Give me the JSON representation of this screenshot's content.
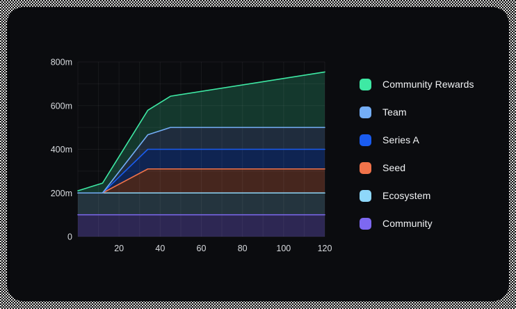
{
  "card": {
    "background": "#0b0c0f"
  },
  "legend": {
    "items": [
      {
        "label": "Community Rewards",
        "color": "#3ee9a4"
      },
      {
        "label": "Team",
        "color": "#74aef7"
      },
      {
        "label": "Series A",
        "color": "#1a5cf0"
      },
      {
        "label": "Seed",
        "color": "#f1734a"
      },
      {
        "label": "Ecosystem",
        "color": "#8ed7fa"
      },
      {
        "label": "Community",
        "color": "#7d68f1"
      }
    ]
  },
  "chart_data": {
    "type": "area",
    "stacked": true,
    "title": "",
    "xlabel": "",
    "ylabel": "",
    "xlim": [
      0,
      120
    ],
    "ylim": [
      0,
      800
    ],
    "grid": true,
    "x_grid_step": 10,
    "y_grid_step": 100,
    "grid_color": "rgba(255,255,255,0.055)",
    "axis_label_color": "#d8dbdf",
    "legend_position": "right",
    "xticks": {
      "values": [
        20,
        40,
        60,
        80,
        100,
        120
      ],
      "labels": [
        "20",
        "40",
        "60",
        "80",
        "100",
        "120"
      ]
    },
    "yticks": {
      "values": [
        0,
        200,
        400,
        600,
        800
      ],
      "labels": [
        "0",
        "200m",
        "400m",
        "600m",
        "800m"
      ]
    },
    "series_note": "bottom-to-top stack order; points are [x_month, individual_value_millions]",
    "series": [
      {
        "name": "Community",
        "line_color": "#7d68f1",
        "fill_color": "rgba(125,104,241,0.30)",
        "points": [
          [
            0,
            100
          ],
          [
            120,
            100
          ]
        ]
      },
      {
        "name": "Ecosystem",
        "line_color": "#8ed7fa",
        "fill_color": "rgba(142,215,250,0.20)",
        "points": [
          [
            0,
            100
          ],
          [
            120,
            100
          ]
        ]
      },
      {
        "name": "Seed",
        "line_color": "#f1734a",
        "fill_color": "rgba(241,115,74,0.26)",
        "points": [
          [
            0,
            0
          ],
          [
            12,
            0
          ],
          [
            34,
            110
          ],
          [
            120,
            110
          ]
        ]
      },
      {
        "name": "Series A",
        "line_color": "#1a5cf0",
        "fill_color": "rgba(26,92,240,0.30)",
        "points": [
          [
            0,
            0
          ],
          [
            12,
            0
          ],
          [
            34,
            90
          ],
          [
            120,
            90
          ]
        ]
      },
      {
        "name": "Team",
        "line_color": "#74aef7",
        "fill_color": "rgba(116,174,247,0.20)",
        "points": [
          [
            0,
            0
          ],
          [
            12,
            0
          ],
          [
            45,
            100
          ],
          [
            120,
            100
          ]
        ]
      },
      {
        "name": "Community Rewards",
        "line_color": "#3ee9a4",
        "fill_color": "rgba(62,233,164,0.20)",
        "points": [
          [
            0,
            10
          ],
          [
            12,
            45
          ],
          [
            34,
            112
          ],
          [
            45,
            143
          ],
          [
            120,
            254
          ]
        ]
      }
    ]
  }
}
